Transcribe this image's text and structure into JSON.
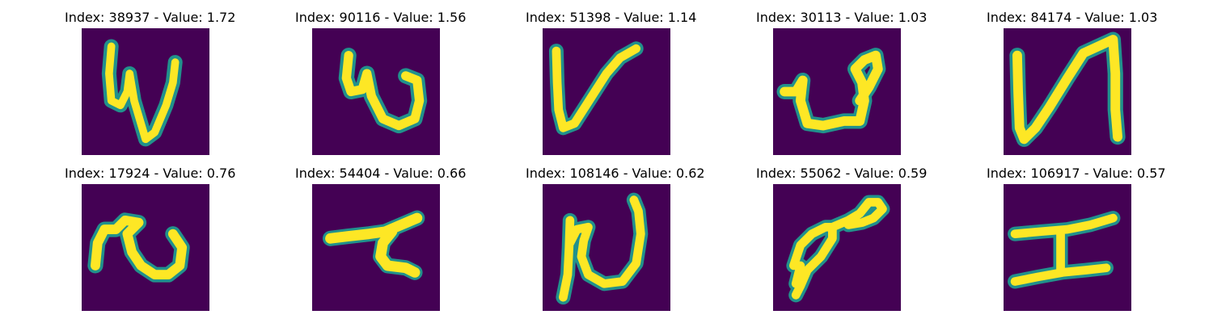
{
  "colors": {
    "background": "#440154",
    "stroke_core": "#fde725",
    "stroke_edge": "#21918c"
  },
  "panels": [
    {
      "title": "Index: 38937 - Value: 1.72"
    },
    {
      "title": "Index: 90116 - Value: 1.56"
    },
    {
      "title": "Index: 51398 - Value: 1.14"
    },
    {
      "title": "Index: 30113 - Value: 1.03"
    },
    {
      "title": "Index: 84174 - Value: 1.03"
    },
    {
      "title": "Index: 17924 - Value: 0.76"
    },
    {
      "title": "Index: 54404 - Value: 0.66"
    },
    {
      "title": "Index: 108146 - Value: 0.62"
    },
    {
      "title": "Index: 55062 - Value: 0.59"
    },
    {
      "title": "Index: 106917 - Value: 0.57"
    }
  ]
}
